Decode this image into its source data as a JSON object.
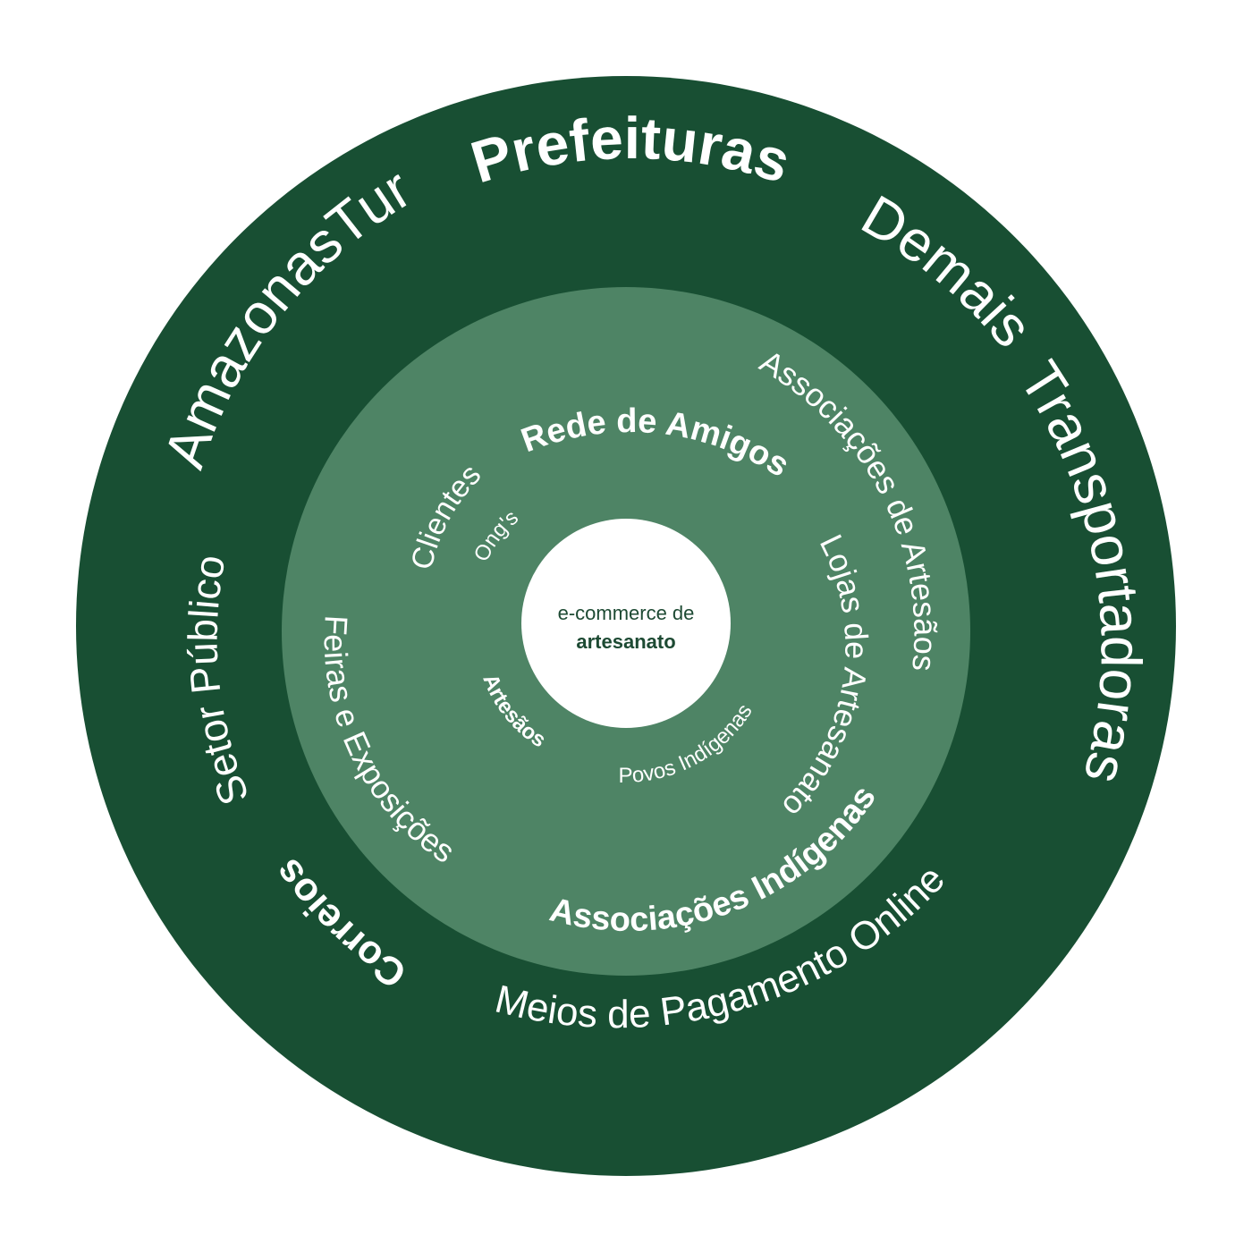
{
  "colors": {
    "outer_ring": "#184f33",
    "middle_ring": "#4e8465",
    "center": "#ffffff",
    "label": "#ffffff",
    "center_text": "#1d4a33"
  },
  "center": {
    "line1": "e-commerce de",
    "line2": "artesanato"
  },
  "outer_ring": {
    "amazonastur": "AmazonasTur",
    "prefeituras": "Prefeituras",
    "demais": "Demais",
    "transportadoras": "Transportadoras",
    "setor_publico": "Setor Público",
    "correios": "Correios",
    "meios_pagamento": "Meios de Pagamento Online"
  },
  "middle_ring": {
    "rede_amigos": "Rede de Amigos",
    "associacoes_artesaos": "Associações de Artesãos",
    "lojas_artesanato": "Lojas de Artesanato",
    "associacoes_indigenas": "Associações Indígenas",
    "feiras_exposicoes": "Feiras e Exposições",
    "clientes": "Clientes"
  },
  "inner_ring": {
    "ongs": "Ong's",
    "artesaos": "Artesãos",
    "povos_indigenas": "Povos Indígenas"
  }
}
